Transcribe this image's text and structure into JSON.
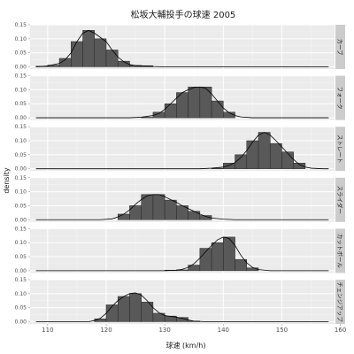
{
  "chart_data": {
    "type": "histogram-density-facets",
    "title": "松坂大輔投手の球速 2005",
    "xlabel": "球速 (km/h)",
    "ylabel": "density",
    "xlim": [
      107,
      159
    ],
    "ylim": [
      -0.008,
      0.15
    ],
    "xticks": [
      110,
      120,
      130,
      140,
      150,
      160
    ],
    "yticks": [
      0,
      0.05,
      0.1,
      0.15
    ],
    "ytick_labels": [
      "0.00",
      "0.05",
      "0.10",
      "0.15"
    ],
    "bin_width": 2,
    "grid": true,
    "facets": [
      {
        "label": "カーブ",
        "bins": [
          [
            109,
            0.002
          ],
          [
            111,
            0.006
          ],
          [
            113,
            0.03
          ],
          [
            115,
            0.09
          ],
          [
            117,
            0.13
          ],
          [
            119,
            0.1
          ],
          [
            121,
            0.06
          ],
          [
            123,
            0.02
          ],
          [
            125,
            0.005
          ],
          [
            127,
            0.004
          ]
        ],
        "density": [
          [
            108,
            0
          ],
          [
            110,
            0.003
          ],
          [
            112,
            0.012
          ],
          [
            113,
            0.025
          ],
          [
            114,
            0.05
          ],
          [
            115,
            0.09
          ],
          [
            116,
            0.12
          ],
          [
            117,
            0.13
          ],
          [
            118,
            0.12
          ],
          [
            119,
            0.105
          ],
          [
            120,
            0.09
          ],
          [
            121,
            0.06
          ],
          [
            122,
            0.035
          ],
          [
            123,
            0.018
          ],
          [
            124,
            0.008
          ],
          [
            125,
            0.004
          ],
          [
            126,
            0.003
          ],
          [
            127,
            0.002
          ],
          [
            128,
            0.001
          ],
          [
            130,
            0
          ]
        ]
      },
      {
        "label": "フォーク",
        "bins": [
          [
            127,
            0.002
          ],
          [
            129,
            0.02
          ],
          [
            131,
            0.05
          ],
          [
            133,
            0.09
          ],
          [
            135,
            0.11
          ],
          [
            137,
            0.11
          ],
          [
            139,
            0.06
          ],
          [
            141,
            0.02
          ]
        ],
        "density": [
          [
            124,
            0
          ],
          [
            126,
            0.002
          ],
          [
            128,
            0.008
          ],
          [
            129,
            0.015
          ],
          [
            130,
            0.03
          ],
          [
            131,
            0.05
          ],
          [
            132,
            0.07
          ],
          [
            133,
            0.09
          ],
          [
            134,
            0.1
          ],
          [
            135,
            0.108
          ],
          [
            136,
            0.11
          ],
          [
            137,
            0.105
          ],
          [
            138,
            0.085
          ],
          [
            139,
            0.06
          ],
          [
            140,
            0.035
          ],
          [
            141,
            0.018
          ],
          [
            142,
            0.008
          ],
          [
            143,
            0.003
          ],
          [
            145,
            0
          ]
        ]
      },
      {
        "label": "ストレート",
        "bins": [
          [
            139,
            0.002
          ],
          [
            141,
            0.02
          ],
          [
            143,
            0.05
          ],
          [
            145,
            0.1
          ],
          [
            147,
            0.13
          ],
          [
            149,
            0.09
          ],
          [
            151,
            0.06
          ],
          [
            153,
            0.02
          ]
        ],
        "density": [
          [
            136,
            0
          ],
          [
            138,
            0.002
          ],
          [
            140,
            0.006
          ],
          [
            141,
            0.012
          ],
          [
            142,
            0.022
          ],
          [
            143,
            0.04
          ],
          [
            144,
            0.065
          ],
          [
            145,
            0.095
          ],
          [
            146,
            0.12
          ],
          [
            147,
            0.13
          ],
          [
            148,
            0.12
          ],
          [
            149,
            0.1
          ],
          [
            150,
            0.078
          ],
          [
            151,
            0.055
          ],
          [
            152,
            0.033
          ],
          [
            153,
            0.015
          ],
          [
            154,
            0.006
          ],
          [
            155,
            0.002
          ],
          [
            157,
            0
          ]
        ]
      },
      {
        "label": "スライダー",
        "bins": [
          [
            123,
            0.02
          ],
          [
            125,
            0.05
          ],
          [
            127,
            0.09
          ],
          [
            129,
            0.09
          ],
          [
            131,
            0.07
          ],
          [
            133,
            0.05
          ],
          [
            135,
            0.03
          ],
          [
            137,
            0.015
          ]
        ],
        "density": [
          [
            119,
            0
          ],
          [
            121,
            0.003
          ],
          [
            122,
            0.01
          ],
          [
            123,
            0.02
          ],
          [
            124,
            0.035
          ],
          [
            125,
            0.055
          ],
          [
            126,
            0.072
          ],
          [
            127,
            0.085
          ],
          [
            128,
            0.09
          ],
          [
            129,
            0.09
          ],
          [
            130,
            0.082
          ],
          [
            131,
            0.072
          ],
          [
            132,
            0.062
          ],
          [
            133,
            0.05
          ],
          [
            134,
            0.04
          ],
          [
            135,
            0.03
          ],
          [
            136,
            0.02
          ],
          [
            137,
            0.012
          ],
          [
            138,
            0.006
          ],
          [
            140,
            0.002
          ],
          [
            142,
            0
          ]
        ]
      },
      {
        "label": "カットボール",
        "bins": [
          [
            131,
            0.002
          ],
          [
            133,
            0.003
          ],
          [
            135,
            0.02
          ],
          [
            137,
            0.08
          ],
          [
            139,
            0.1
          ],
          [
            141,
            0.12
          ],
          [
            143,
            0.04
          ],
          [
            145,
            0.01
          ]
        ],
        "density": [
          [
            130,
            0
          ],
          [
            132,
            0.002
          ],
          [
            133,
            0.005
          ],
          [
            134,
            0.012
          ],
          [
            135,
            0.025
          ],
          [
            136,
            0.045
          ],
          [
            137,
            0.068
          ],
          [
            138,
            0.09
          ],
          [
            139,
            0.11
          ],
          [
            140,
            0.12
          ],
          [
            141,
            0.115
          ],
          [
            142,
            0.09
          ],
          [
            143,
            0.055
          ],
          [
            144,
            0.028
          ],
          [
            145,
            0.012
          ],
          [
            146,
            0.004
          ],
          [
            148,
            0
          ]
        ]
      },
      {
        "label": "チェンジアップ",
        "bins": [
          [
            119,
            0.01
          ],
          [
            121,
            0.06
          ],
          [
            123,
            0.09
          ],
          [
            125,
            0.1
          ],
          [
            127,
            0.07
          ],
          [
            129,
            0.03
          ],
          [
            131,
            0.02
          ],
          [
            133,
            0.015
          ],
          [
            135,
            0.002
          ]
        ],
        "density": [
          [
            117,
            0
          ],
          [
            118,
            0.004
          ],
          [
            119,
            0.012
          ],
          [
            120,
            0.03
          ],
          [
            121,
            0.055
          ],
          [
            122,
            0.075
          ],
          [
            123,
            0.09
          ],
          [
            124,
            0.1
          ],
          [
            125,
            0.103
          ],
          [
            126,
            0.095
          ],
          [
            127,
            0.075
          ],
          [
            128,
            0.05
          ],
          [
            129,
            0.032
          ],
          [
            130,
            0.022
          ],
          [
            131,
            0.019
          ],
          [
            132,
            0.016
          ],
          [
            133,
            0.012
          ],
          [
            134,
            0.006
          ],
          [
            135,
            0.002
          ],
          [
            137,
            0
          ]
        ]
      }
    ]
  }
}
